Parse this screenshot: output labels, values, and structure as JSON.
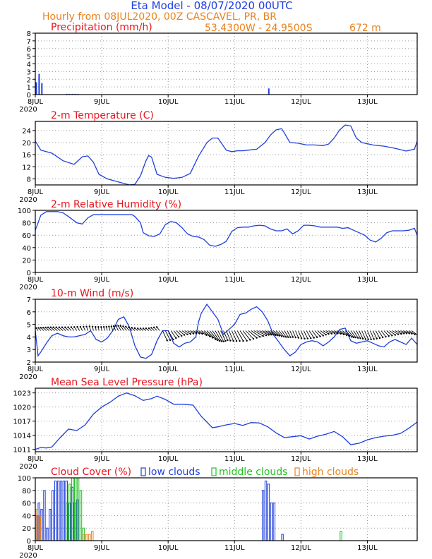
{
  "header": {
    "title": "Eta Model - 08/07/2020 00UTC",
    "subtitle": "Hourly from 08JUL2020, 00Z  CASCAVEL, PR, BR",
    "location": "53.4300W - 24.9500S",
    "elevation": "672  m"
  },
  "colors": {
    "title": "#1f3fdc",
    "subtitle": "#e8821e",
    "panel_title": "#e8141e",
    "series": "#1f3fdc",
    "axis": "#000000",
    "grid": "#9a9a9a",
    "low_clouds": "#1f3fdc",
    "middle_clouds": "#22c022",
    "high_clouds": "#e8821e"
  },
  "chart_data": [
    {
      "id": "precip",
      "type": "bar",
      "title": "Precipitation (mm/h)",
      "ylim": [
        0,
        8
      ],
      "yticks": [
        0,
        1,
        2,
        3,
        4,
        5,
        6,
        7,
        8
      ],
      "x_unit": "hours since 08JUL2020 00Z",
      "xticks": [
        "8JUL",
        "9JUL",
        "10JUL",
        "11JUL",
        "12JUL",
        "13JUL"
      ],
      "x_year": "2020",
      "series": [
        {
          "name": "precipitation",
          "x": [
            0,
            1,
            2,
            11,
            12,
            13,
            14,
            15,
            84
          ],
          "values": [
            1.6,
            2.7,
            1.5,
            0.1,
            0.1,
            0.1,
            0.1,
            0.1,
            0.8
          ]
        }
      ]
    },
    {
      "id": "temp",
      "type": "line",
      "title": "2-m Temperature (C)",
      "ylim": [
        6,
        27
      ],
      "yticks": [
        8,
        12,
        16,
        20,
        24
      ],
      "xticks": [
        "8JUL",
        "9JUL",
        "10JUL",
        "11JUL",
        "12JUL",
        "13JUL"
      ],
      "x_year": "2020",
      "series": [
        {
          "name": "temperature",
          "x": [
            0,
            2,
            6,
            10,
            14,
            17,
            19,
            21,
            23,
            26,
            30,
            34,
            36,
            38,
            40,
            41,
            42,
            44,
            47,
            50,
            53,
            56,
            59,
            62,
            64,
            66,
            69,
            71,
            73,
            75,
            77,
            80,
            83,
            85,
            87,
            89,
            90,
            92,
            95,
            98,
            101,
            104,
            106,
            108,
            110,
            112,
            114,
            116,
            118,
            122,
            126,
            130,
            134,
            137,
            138
          ],
          "values": [
            20.5,
            17.5,
            16.5,
            14,
            12.8,
            15.3,
            15.6,
            13.5,
            9.5,
            8,
            7,
            6,
            6.2,
            9,
            14,
            15.7,
            15.2,
            9.5,
            8.5,
            8.2,
            8.5,
            9.8,
            15.5,
            20,
            21.5,
            21.5,
            17.5,
            17,
            17.3,
            17.3,
            17.5,
            17.8,
            20,
            22.5,
            24.2,
            24.6,
            23.2,
            20,
            19.8,
            19.2,
            19.2,
            19,
            19.5,
            21.5,
            24.2,
            25.8,
            25.5,
            21.5,
            20,
            19.2,
            18.8,
            18.1,
            17.2,
            17.8,
            20.5
          ]
        }
      ]
    },
    {
      "id": "rh",
      "type": "line",
      "title": "2-m Relative Humidity (%)",
      "ylim": [
        0,
        100
      ],
      "yticks": [
        0,
        20,
        40,
        60,
        80,
        100
      ],
      "xticks": [
        "8JUL",
        "9JUL",
        "10JUL",
        "11JUL",
        "12JUL",
        "13JUL"
      ],
      "x_year": "2020",
      "series": [
        {
          "name": "relative humidity",
          "x": [
            0,
            2,
            4,
            6,
            8,
            10,
            12,
            15,
            17,
            19,
            21,
            24,
            27,
            30,
            33,
            35,
            36,
            38,
            39,
            41,
            43,
            45,
            47,
            49,
            51,
            53,
            55,
            57,
            59,
            61,
            63,
            65,
            67,
            69,
            71,
            73,
            75,
            77,
            79,
            81,
            83,
            85,
            87,
            89,
            91,
            93,
            95,
            97,
            99,
            101,
            103,
            105,
            107,
            109,
            111,
            113,
            115,
            117,
            119,
            121,
            123,
            125,
            127,
            129,
            131,
            133,
            135,
            137,
            138
          ],
          "values": [
            68,
            92,
            98,
            98,
            98,
            96,
            90,
            80,
            78,
            88,
            93,
            93,
            93,
            93,
            93,
            93,
            90,
            80,
            64,
            59,
            58,
            62,
            77,
            82,
            80,
            72,
            62,
            58,
            57,
            53,
            44,
            42,
            45,
            50,
            66,
            72,
            73,
            73,
            75,
            76,
            75,
            70,
            67,
            67,
            70,
            62,
            67,
            76,
            76,
            75,
            73,
            73,
            73,
            73,
            71,
            72,
            68,
            64,
            60,
            52,
            49,
            55,
            64,
            67,
            67,
            67,
            68,
            71,
            60
          ]
        }
      ]
    },
    {
      "id": "wind",
      "type": "line",
      "title": "10-m Wind (m/s)",
      "ylim": [
        2,
        7
      ],
      "yticks": [
        2,
        3,
        4,
        5,
        6,
        7
      ],
      "xticks": [
        "8JUL",
        "9JUL",
        "10JUL",
        "11JUL",
        "12JUL",
        "13JUL"
      ],
      "x_year": "2020",
      "barb_level": 4.5,
      "series": [
        {
          "name": "wind speed",
          "x": [
            0,
            1,
            2,
            4,
            6,
            8,
            10,
            12,
            14,
            16,
            18,
            20,
            22,
            24,
            26,
            28,
            30,
            32,
            34,
            36,
            38,
            40,
            42,
            44,
            46,
            48,
            50,
            52,
            54,
            56,
            58,
            59,
            60,
            62,
            64,
            66,
            68,
            70,
            72,
            74,
            76,
            78,
            80,
            82,
            84,
            86,
            88,
            90,
            92,
            94,
            96,
            98,
            100,
            102,
            104,
            106,
            108,
            110,
            112,
            114,
            116,
            118,
            120,
            122,
            124,
            126,
            128,
            130,
            132,
            134,
            136,
            138
          ],
          "values": [
            4.5,
            2.5,
            2.8,
            3.5,
            4.1,
            4.3,
            4.1,
            4.0,
            4.0,
            4.1,
            4.2,
            4.5,
            3.8,
            3.6,
            3.9,
            4.5,
            5.4,
            5.6,
            4.8,
            3.3,
            2.4,
            2.3,
            2.6,
            3.7,
            4.5,
            4.5,
            3.5,
            3.2,
            3.5,
            3.6,
            4.0,
            5.2,
            5.9,
            6.6,
            6.0,
            5.4,
            4.2,
            4.6,
            5.0,
            5.8,
            5.9,
            6.2,
            6.4,
            6.0,
            5.3,
            4.2,
            3.6,
            3.0,
            2.5,
            2.8,
            3.4,
            3.6,
            3.7,
            3.6,
            3.3,
            3.6,
            4.0,
            4.6,
            4.7,
            3.7,
            3.5,
            3.6,
            3.7,
            3.5,
            3.3,
            3.2,
            3.6,
            3.8,
            3.6,
            3.4,
            3.9,
            3.4
          ]
        }
      ]
    },
    {
      "id": "mslp",
      "type": "line",
      "title": "Mean Sea Level Pressure (hPa)",
      "ylim": [
        1010.5,
        1024
      ],
      "yticks": [
        1011,
        1014,
        1017,
        1020,
        1023
      ],
      "xticks": [
        "8JUL",
        "9JUL",
        "10JUL",
        "11JUL",
        "12JUL",
        "13JUL"
      ],
      "x_year": "2020",
      "series": [
        {
          "name": "pressure",
          "x": [
            0,
            2,
            4,
            6,
            9,
            12,
            15,
            18,
            21,
            24,
            27,
            30,
            33,
            36,
            39,
            42,
            44,
            47,
            50,
            53,
            57,
            60,
            64,
            66,
            69,
            72,
            75,
            78,
            81,
            84,
            87,
            90,
            93,
            96,
            99,
            102,
            105,
            108,
            111,
            114,
            117,
            120,
            123,
            126,
            129,
            132,
            135,
            138
          ],
          "values": [
            1011,
            1011.4,
            1011.3,
            1011.5,
            1013.5,
            1015.3,
            1015.0,
            1016.2,
            1018.5,
            1020.0,
            1021.0,
            1022.3,
            1023.0,
            1022.4,
            1021.4,
            1021.8,
            1022.3,
            1021.6,
            1020.6,
            1020.6,
            1020.4,
            1018.0,
            1015.6,
            1015.8,
            1016.2,
            1016.5,
            1016.1,
            1016.7,
            1016.6,
            1015.8,
            1014.5,
            1013.5,
            1013.7,
            1013.9,
            1013.2,
            1013.8,
            1014.2,
            1014.8,
            1013.7,
            1012.0,
            1012.3,
            1013.0,
            1013.5,
            1013.8,
            1014.0,
            1014.4,
            1015.5,
            1016.8
          ]
        }
      ]
    },
    {
      "id": "clouds",
      "type": "bar",
      "title": "Cloud Cover (%)",
      "ylim": [
        0,
        100
      ],
      "yticks": [
        0,
        20,
        40,
        60,
        80,
        100
      ],
      "xticks": [
        "8JUL",
        "9JUL",
        "10JUL",
        "11JUL",
        "12JUL",
        "13JUL"
      ],
      "x_year": "2020",
      "legend": [
        "low clouds",
        "middle clouds",
        "high clouds"
      ],
      "series": [
        {
          "name": "low clouds",
          "x": [
            0,
            1,
            2,
            3,
            4,
            5,
            6,
            7,
            8,
            9,
            10,
            11,
            12,
            13,
            14,
            15,
            82,
            83,
            84,
            85,
            86,
            89
          ],
          "values": [
            40,
            60,
            50,
            80,
            20,
            50,
            80,
            95,
            95,
            95,
            95,
            95,
            60,
            85,
            60,
            65,
            80,
            95,
            90,
            60,
            60,
            10
          ]
        },
        {
          "name": "middle clouds",
          "x": [
            11,
            12,
            13,
            14,
            15,
            16,
            17,
            110
          ],
          "values": [
            60,
            90,
            100,
            100,
            100,
            80,
            20,
            15
          ]
        },
        {
          "name": "high clouds",
          "x": [
            0,
            1,
            17,
            18,
            19,
            20
          ],
          "values": [
            50,
            40,
            10,
            10,
            10,
            15
          ]
        }
      ]
    }
  ]
}
